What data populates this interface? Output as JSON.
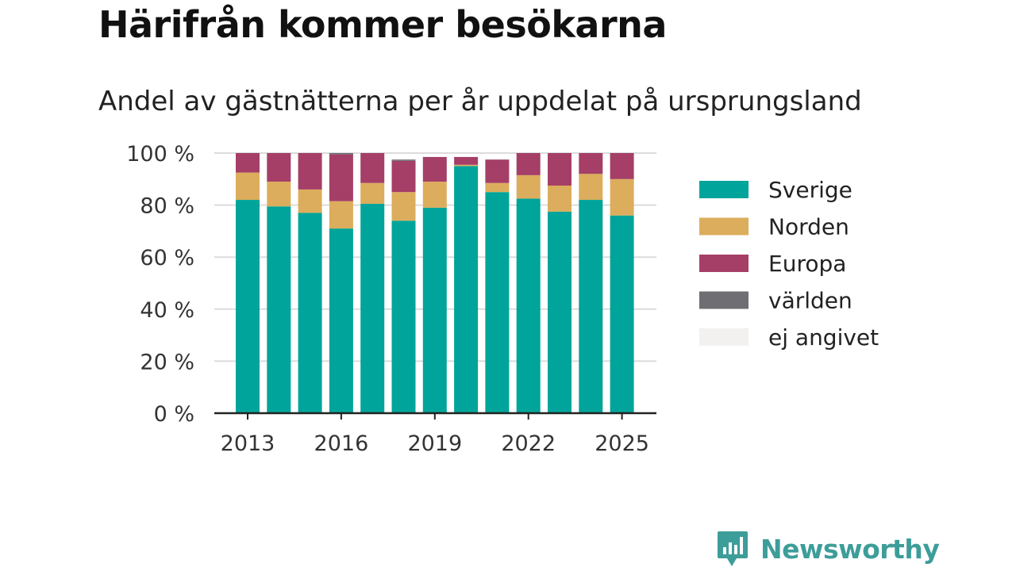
{
  "title": "Härifrån kommer besökarna",
  "subtitle": "Andel av gästnätterna per år uppdelat på ursprungsland",
  "brand": {
    "name": "Newsworthy",
    "icon": "newsworthy-logo-icon"
  },
  "chart_data": {
    "type": "bar",
    "stacked": true,
    "categories": [
      "2013",
      "2014",
      "2015",
      "2016",
      "2017",
      "2018",
      "2019",
      "2020",
      "2021",
      "2022",
      "2023",
      "2024",
      "2025"
    ],
    "x_tick_labels": [
      "2013",
      "2016",
      "2019",
      "2022",
      "2025"
    ],
    "y_tick_labels": [
      "0 %",
      "20 %",
      "40 %",
      "60 %",
      "80 %",
      "100 %"
    ],
    "ylim": [
      0,
      100
    ],
    "grid": true,
    "legend_position": "right",
    "series": [
      {
        "name": "Sverige",
        "color": "#00a49a",
        "values": [
          82,
          79.5,
          77,
          71,
          80.5,
          74,
          79,
          95,
          85,
          82.5,
          77.5,
          82,
          76
        ]
      },
      {
        "name": "Norden",
        "color": "#dcad5c",
        "values": [
          10.5,
          9.5,
          9,
          10.5,
          8,
          11,
          10,
          0.5,
          3.5,
          9,
          10,
          10,
          14
        ]
      },
      {
        "name": "Europa",
        "color": "#a53f67",
        "values": [
          7.5,
          11,
          14,
          18,
          11.5,
          12,
          9.5,
          3,
          9,
          8.5,
          12.5,
          8,
          10
        ]
      },
      {
        "name": "världen",
        "color": "#6e6e73",
        "values": [
          0,
          0,
          0,
          0.5,
          0,
          0.5,
          0,
          0,
          0,
          0,
          0,
          0,
          0
        ]
      },
      {
        "name": "ej angivet",
        "color": "#f2f1ef",
        "values": [
          0,
          0,
          0,
          0,
          0,
          0,
          0,
          0,
          0,
          0,
          0,
          0,
          0
        ]
      }
    ]
  }
}
